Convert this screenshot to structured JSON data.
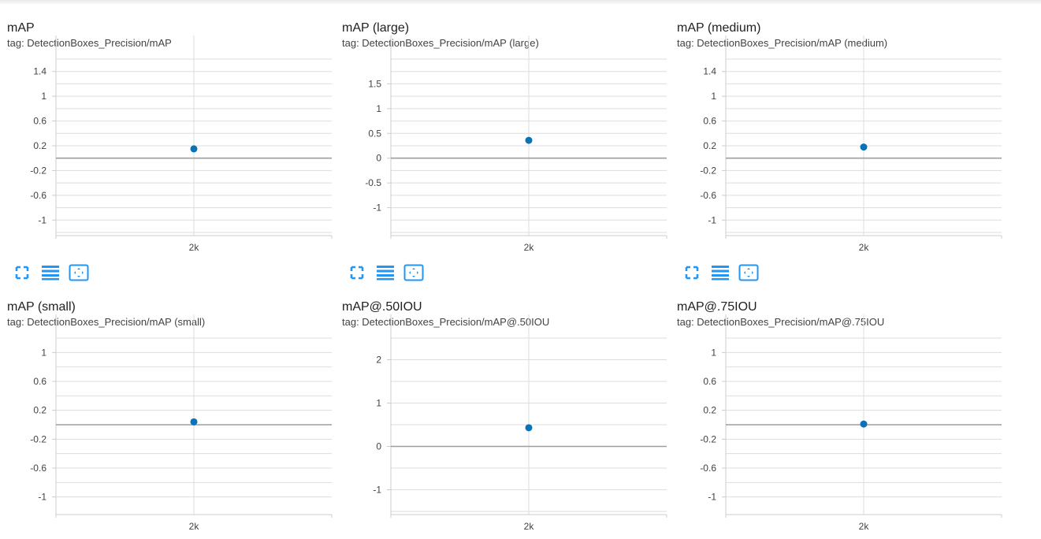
{
  "colors": {
    "accent": "#2196f3",
    "point": "#0b72b5",
    "grid": "#dddddd",
    "zero_line": "#9e9e9e",
    "axis": "#cccccc"
  },
  "toolbar_icons": [
    "fullscreen-icon",
    "lines-icon",
    "fit-domain-icon"
  ],
  "charts": [
    {
      "title": "mAP",
      "tag": "tag: DetectionBoxes_Precision/mAP"
    },
    {
      "title": "mAP (large)",
      "tag": "tag: DetectionBoxes_Precision/mAP (large)"
    },
    {
      "title": "mAP (medium)",
      "tag": "tag: DetectionBoxes_Precision/mAP (medium)"
    },
    {
      "title": "mAP (small)",
      "tag": "tag: DetectionBoxes_Precision/mAP (small)"
    },
    {
      "title": "mAP@.50IOU",
      "tag": "tag: DetectionBoxes_Precision/mAP@.50IOU"
    },
    {
      "title": "mAP@.75IOU",
      "tag": "tag: DetectionBoxes_Precision/mAP@.75IOU"
    }
  ],
  "chart_data": [
    {
      "type": "scatter",
      "title": "mAP",
      "x": [
        2000
      ],
      "y": [
        0.15
      ],
      "xticks": [
        "2k"
      ],
      "yticks": [
        1.4,
        1,
        0.6,
        0.2,
        -0.2,
        -0.6,
        -1
      ],
      "ytick_labels": [
        "1.4",
        "1",
        "0.6",
        "0.2",
        "-0.2",
        "-0.6",
        "-1"
      ],
      "ylim": [
        -1.2,
        1.6
      ],
      "grid": true
    },
    {
      "type": "scatter",
      "title": "mAP (large)",
      "x": [
        2000
      ],
      "y": [
        0.36
      ],
      "xticks": [
        "2k"
      ],
      "yticks": [
        1.5,
        1,
        0.5,
        0,
        -0.5,
        -1
      ],
      "ytick_labels": [
        "1.5",
        "1",
        "0.5",
        "0",
        "-0.5",
        "-1"
      ],
      "ylim": [
        -1.5,
        2.0
      ],
      "grid": true
    },
    {
      "type": "scatter",
      "title": "mAP (medium)",
      "x": [
        2000
      ],
      "y": [
        0.18
      ],
      "xticks": [
        "2k"
      ],
      "yticks": [
        1.4,
        1,
        0.6,
        0.2,
        -0.2,
        -0.6,
        -1
      ],
      "ytick_labels": [
        "1.4",
        "1",
        "0.6",
        "0.2",
        "-0.2",
        "-0.6",
        "-1"
      ],
      "ylim": [
        -1.2,
        1.6
      ],
      "grid": true
    },
    {
      "type": "scatter",
      "title": "mAP (small)",
      "x": [
        2000
      ],
      "y": [
        0.04
      ],
      "xticks": [
        "2k"
      ],
      "yticks": [
        1,
        0.6,
        0.2,
        -0.2,
        -0.6,
        -1
      ],
      "ytick_labels": [
        "1",
        "0.6",
        "0.2",
        "-0.2",
        "-0.6",
        "-1"
      ],
      "ylim": [
        -1.2,
        1.2
      ],
      "grid": true
    },
    {
      "type": "scatter",
      "title": "mAP@.50IOU",
      "x": [
        2000
      ],
      "y": [
        0.43
      ],
      "xticks": [
        "2k"
      ],
      "yticks": [
        2,
        1,
        0,
        -1
      ],
      "ytick_labels": [
        "2",
        "1",
        "0",
        "-1"
      ],
      "ylim": [
        -1.5,
        2.5
      ],
      "grid": true
    },
    {
      "type": "scatter",
      "title": "mAP@.75IOU",
      "x": [
        2000
      ],
      "y": [
        0.01
      ],
      "xticks": [
        "2k"
      ],
      "yticks": [
        1,
        0.6,
        0.2,
        -0.2,
        -0.6,
        -1
      ],
      "ytick_labels": [
        "1",
        "0.6",
        "0.2",
        "-0.2",
        "-0.6",
        "-1"
      ],
      "ylim": [
        -1.2,
        1.2
      ],
      "grid": true
    }
  ]
}
